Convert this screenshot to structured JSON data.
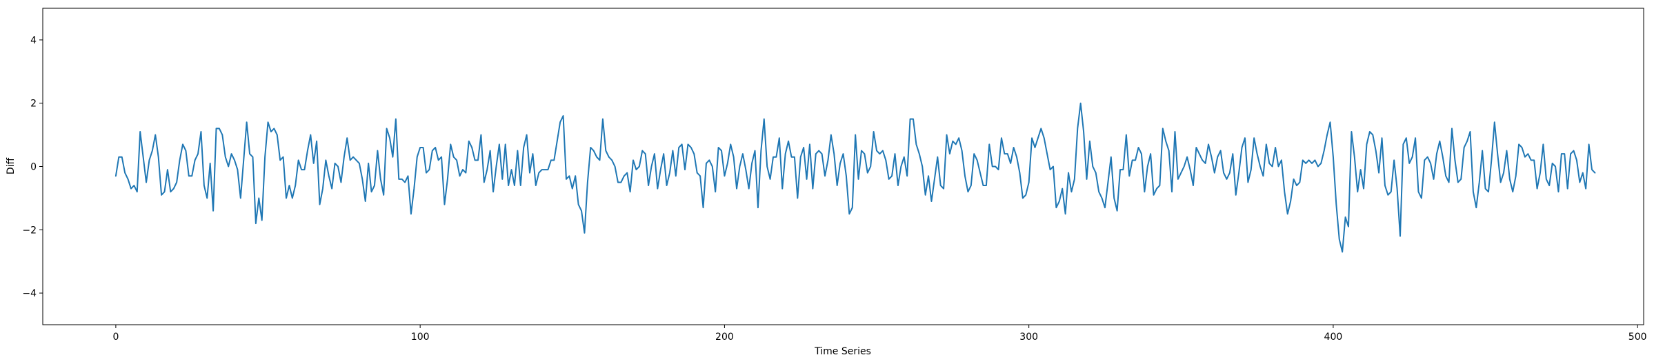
{
  "chart_data": {
    "type": "line",
    "title": "",
    "xlabel": "Time Series",
    "ylabel": "Diff",
    "xlim": [
      -24,
      502
    ],
    "ylim": [
      -5,
      5
    ],
    "xticks": [
      0,
      100,
      200,
      300,
      400,
      500
    ],
    "yticks": [
      -4,
      -2,
      0,
      2,
      4
    ],
    "grid": false,
    "legend": "none",
    "line_color": "#1f77b4",
    "series": [
      {
        "x_start": 0,
        "x_step": 1,
        "values": [
          -0.3,
          0.3,
          0.3,
          -0.2,
          -0.4,
          -0.7,
          -0.6,
          -0.8,
          1.1,
          0.3,
          -0.5,
          0.2,
          0.5,
          1.0,
          0.3,
          -0.9,
          -0.8,
          -0.1,
          -0.8,
          -0.7,
          -0.5,
          0.2,
          0.7,
          0.5,
          -0.3,
          -0.3,
          0.2,
          0.4,
          1.1,
          -0.6,
          -1.0,
          0.1,
          -1.4,
          1.2,
          1.2,
          1.0,
          0.3,
          0.0,
          0.4,
          0.2,
          -0.1,
          -1.0,
          0.2,
          1.4,
          0.4,
          0.3,
          -1.8,
          -1.0,
          -1.7,
          0.3,
          1.4,
          1.1,
          1.2,
          1.0,
          0.2,
          0.3,
          -1.0,
          -0.6,
          -1.0,
          -0.6,
          0.2,
          -0.1,
          -0.1,
          0.5,
          1.0,
          0.1,
          0.8,
          -1.2,
          -0.7,
          0.2,
          -0.3,
          -0.7,
          0.1,
          0.0,
          -0.5,
          0.3,
          0.9,
          0.2,
          0.3,
          0.2,
          0.1,
          -0.4,
          -1.1,
          0.1,
          -0.8,
          -0.6,
          0.5,
          -0.4,
          -0.9,
          1.2,
          0.9,
          0.3,
          1.5,
          -0.4,
          -0.4,
          -0.5,
          -0.3,
          -1.5,
          -0.7,
          0.3,
          0.6,
          0.6,
          -0.2,
          -0.1,
          0.5,
          0.6,
          0.2,
          0.3,
          -1.2,
          -0.4,
          0.7,
          0.3,
          0.2,
          -0.3,
          -0.1,
          -0.2,
          0.8,
          0.6,
          0.2,
          0.2,
          1.0,
          -0.5,
          -0.1,
          0.5,
          -0.8,
          0.0,
          0.7,
          -0.4,
          0.7,
          -0.6,
          -0.1,
          -0.6,
          0.5,
          -0.6,
          0.6,
          1.0,
          -0.2,
          0.4,
          -0.6,
          -0.2,
          -0.1,
          -0.1,
          -0.1,
          0.2,
          0.2,
          0.8,
          1.4,
          1.6,
          -0.4,
          -0.3,
          -0.7,
          -0.3,
          -1.2,
          -1.4,
          -2.1,
          -0.5,
          0.6,
          0.5,
          0.3,
          0.2,
          1.5,
          0.5,
          0.3,
          0.2,
          0.0,
          -0.5,
          -0.5,
          -0.3,
          -0.2,
          -0.8,
          0.2,
          -0.1,
          0.0,
          0.5,
          0.4,
          -0.6,
          0.0,
          0.4,
          -0.7,
          -0.1,
          0.4,
          -0.6,
          -0.2,
          0.5,
          -0.3,
          0.6,
          0.7,
          -0.1,
          0.7,
          0.6,
          0.4,
          -0.2,
          -0.3,
          -1.3,
          0.1,
          0.2,
          0.0,
          -0.8,
          0.6,
          0.5,
          -0.3,
          0.1,
          0.7,
          0.3,
          -0.7,
          0.0,
          0.4,
          -0.1,
          -0.7,
          0.1,
          0.5,
          -1.3,
          0.5,
          1.5,
          0.0,
          -0.4,
          0.3,
          0.3,
          0.9,
          -0.7,
          0.4,
          0.8,
          0.3,
          0.3,
          -1.0,
          0.3,
          0.6,
          -0.4,
          0.7,
          -0.7,
          0.4,
          0.5,
          0.4,
          -0.3,
          0.2,
          1.0,
          0.4,
          -0.6,
          0.1,
          0.4,
          -0.3,
          -1.5,
          -1.3,
          1.0,
          -0.4,
          0.5,
          0.4,
          -0.2,
          0.0,
          1.1,
          0.5,
          0.4,
          0.5,
          0.2,
          -0.4,
          -0.3,
          0.4,
          -0.6,
          0.0,
          0.3,
          -0.3,
          1.5,
          1.5,
          0.7,
          0.4,
          0.0,
          -0.9,
          -0.3,
          -1.1,
          -0.4,
          0.3,
          -0.6,
          -0.7,
          1.0,
          0.4,
          0.8,
          0.7,
          0.9,
          0.5,
          -0.3,
          -0.8,
          -0.6,
          0.4,
          0.2,
          -0.2,
          -0.6,
          -0.6,
          0.7,
          0.0,
          0.0,
          -0.1,
          0.9,
          0.4,
          0.4,
          0.1,
          0.6,
          0.3,
          -0.2,
          -1.0,
          -0.9,
          -0.5,
          0.9,
          0.6,
          0.9,
          1.2,
          0.9,
          0.4,
          -0.1,
          0.0,
          -1.3,
          -1.1,
          -0.7,
          -1.5,
          -0.2,
          -0.8,
          -0.4,
          1.2,
          2.0,
          1.1,
          -0.4,
          0.8,
          0.0,
          -0.2,
          -0.8,
          -1.0,
          -1.3,
          -0.5,
          0.3,
          -1.0,
          -1.4,
          -0.1,
          -0.1,
          1.0,
          -0.3,
          0.2,
          0.2,
          0.6,
          0.4,
          -0.8,
          0.0,
          0.4,
          -0.9,
          -0.7,
          -0.6,
          1.2,
          0.8,
          0.5,
          -0.8,
          1.1,
          -0.4,
          -0.2,
          0.0,
          0.3,
          -0.1,
          -0.6,
          0.6,
          0.4,
          0.2,
          0.1,
          0.7,
          0.3,
          -0.2,
          0.3,
          0.5,
          -0.2,
          -0.4,
          -0.2,
          0.4,
          -0.9,
          -0.2,
          0.6,
          0.9,
          -0.5,
          -0.1,
          0.9,
          0.4,
          0.0,
          -0.3,
          0.7,
          0.1,
          0.0,
          0.6,
          0.0,
          0.2,
          -0.8,
          -1.5,
          -1.1,
          -0.4,
          -0.6,
          -0.5,
          0.2,
          0.1,
          0.2,
          0.1,
          0.2,
          0.0,
          0.1,
          0.5,
          1.0,
          1.4,
          0.3,
          -1.2,
          -2.3,
          -2.7,
          -1.6,
          -1.9,
          1.1,
          0.3,
          -0.8,
          -0.1,
          -0.7,
          0.7,
          1.1,
          1.0,
          0.5,
          -0.2,
          0.9,
          -0.6,
          -0.9,
          -0.8,
          0.2,
          -0.7,
          -2.2,
          0.7,
          0.9,
          0.1,
          0.3,
          0.9,
          -0.8,
          -1.0,
          0.2,
          0.3,
          0.1,
          -0.4,
          0.4,
          0.8,
          0.3,
          -0.3,
          -0.5,
          1.2,
          0.2,
          -0.5,
          -0.4,
          0.6,
          0.8,
          1.1,
          -0.8,
          -1.3,
          -0.5,
          0.5,
          -0.7,
          -0.8,
          0.2,
          1.4,
          0.4,
          -0.5,
          -0.2,
          0.5,
          -0.4,
          -0.8,
          -0.3,
          0.7,
          0.6,
          0.3,
          0.4,
          0.2,
          0.2,
          -0.7,
          -0.2,
          0.7,
          -0.4,
          -0.6,
          0.1,
          0.0,
          -0.8,
          0.4,
          0.4,
          -0.7,
          0.4,
          0.5,
          0.2,
          -0.5,
          -0.2,
          -0.7,
          0.7,
          -0.1,
          -0.2
        ]
      }
    ]
  }
}
